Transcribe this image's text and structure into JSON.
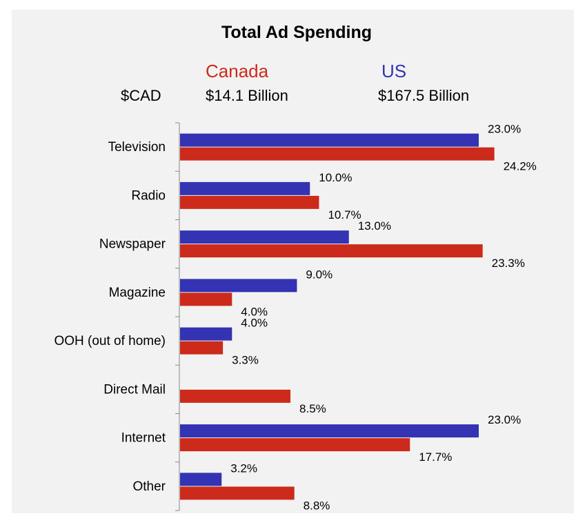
{
  "chart_data": {
    "type": "bar",
    "orientation": "horizontal",
    "title": "Total Ad Spending",
    "currency_label": "$CAD",
    "categories": [
      "Television",
      "Radio",
      "Newspaper",
      "Magazine",
      "OOH (out of home)",
      "Direct Mail",
      "Internet",
      "Other"
    ],
    "series": [
      {
        "name": "US",
        "total": "$167.5 Billion",
        "color": "#3333b3",
        "values": [
          23.0,
          10.0,
          13.0,
          9.0,
          4.0,
          null,
          23.0,
          3.2
        ],
        "labels": [
          "23.0%",
          "10.0%",
          "13.0%",
          "9.0%",
          "4.0%",
          "",
          "23.0%",
          "3.2%"
        ]
      },
      {
        "name": "Canada",
        "total": "$14.1 Billion",
        "color": "#cc2a1a",
        "values": [
          24.2,
          10.7,
          23.3,
          4.0,
          3.3,
          8.5,
          17.7,
          8.8
        ],
        "labels": [
          "24.2%",
          "10.7%",
          "23.3%",
          "4.0%",
          "3.3%",
          "8.5%",
          "17.7%",
          "8.8%"
        ]
      }
    ],
    "xlim": [
      0,
      30
    ],
    "grid": false,
    "legend": "top"
  }
}
